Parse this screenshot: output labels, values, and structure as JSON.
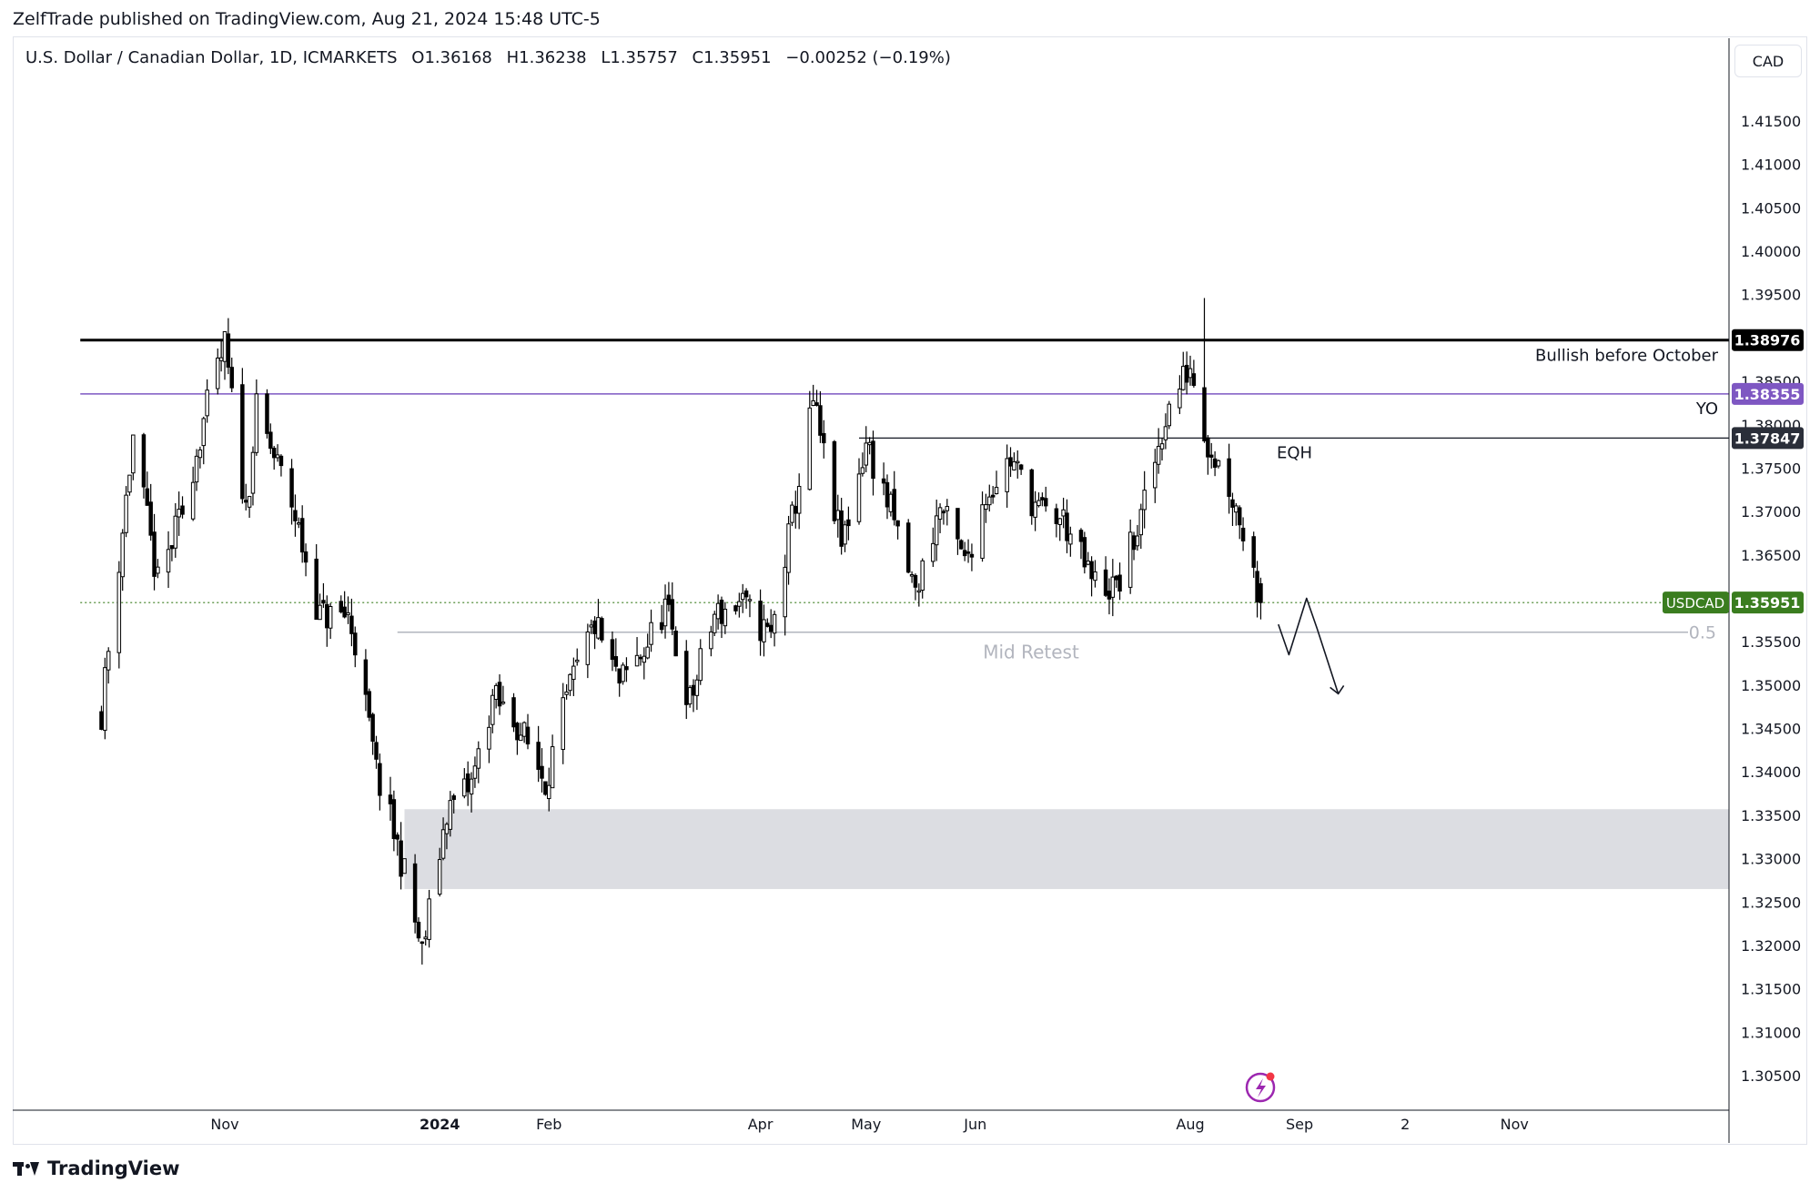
{
  "header": {
    "publisher": "ZelfTrade published on TradingView.com, Aug 21, 2024 15:48 UTC-5"
  },
  "legend": {
    "symbol": "U.S. Dollar / Canadian Dollar, 1D, ICMARKETS",
    "open": "O1.36168",
    "high": "H1.36238",
    "low": "L1.35757",
    "close": "C1.35951",
    "change": "−0.00252 (−0.19%)"
  },
  "currency_button": "CAD",
  "footer": {
    "brand": "TradingView"
  },
  "colors": {
    "up": "#ffffff",
    "down": "#000000",
    "wick": "#000000",
    "resistance": "#000000",
    "yearly_open": "#7e57c2",
    "last_price": "#3a7d1f",
    "zone": "#dcdde2",
    "mid": "#b2b5be"
  },
  "chart_data": {
    "type": "candlestick",
    "symbol": "USDCAD",
    "timeframe": "1D",
    "y_axis": {
      "min": 1.3015,
      "max": 1.418,
      "ticks": [
        "1.41500",
        "1.41000",
        "1.40500",
        "1.40000",
        "1.39500",
        "1.39000",
        "1.38500",
        "1.38000",
        "1.37500",
        "1.37000",
        "1.36500",
        "1.36000",
        "1.35500",
        "1.35000",
        "1.34500",
        "1.34000",
        "1.33500",
        "1.33000",
        "1.32500",
        "1.32000",
        "1.31500",
        "1.31000",
        "1.30500"
      ]
    },
    "x_axis": {
      "labels": [
        {
          "text": "Nov",
          "date": "2023-11-01",
          "bold": false
        },
        {
          "text": "2024",
          "date": "2024-01-01",
          "bold": true
        },
        {
          "text": "Feb",
          "date": "2024-02-01",
          "bold": false
        },
        {
          "text": "Apr",
          "date": "2024-04-01",
          "bold": false
        },
        {
          "text": "May",
          "date": "2024-05-01",
          "bold": false
        },
        {
          "text": "Jun",
          "date": "2024-06-01",
          "bold": false
        },
        {
          "text": "Aug",
          "date": "2024-08-01",
          "bold": false
        },
        {
          "text": "Sep",
          "date": "2024-09-01",
          "bold": false
        },
        {
          "text": "2",
          "date": "2024-10-01",
          "bold": false
        },
        {
          "text": "Nov",
          "date": "2024-11-01",
          "bold": false
        }
      ]
    },
    "anchors": [
      {
        "date": "2023-09-27",
        "price": 1.347
      },
      {
        "date": "2023-10-06",
        "price": 1.3785
      },
      {
        "date": "2023-10-13",
        "price": 1.3615
      },
      {
        "date": "2023-10-20",
        "price": 1.37
      },
      {
        "date": "2023-10-26",
        "price": 1.3805
      },
      {
        "date": "2023-11-01",
        "price": 1.389
      },
      {
        "date": "2023-11-07",
        "price": 1.37
      },
      {
        "date": "2023-11-10",
        "price": 1.3815
      },
      {
        "date": "2023-11-20",
        "price": 1.371
      },
      {
        "date": "2023-11-28",
        "price": 1.358
      },
      {
        "date": "2023-12-06",
        "price": 1.358
      },
      {
        "date": "2023-12-08",
        "price": 1.355
      },
      {
        "date": "2023-12-14",
        "price": 1.34
      },
      {
        "date": "2023-12-21",
        "price": 1.33
      },
      {
        "date": "2023-12-27",
        "price": 1.319
      },
      {
        "date": "2024-01-03",
        "price": 1.3355
      },
      {
        "date": "2024-01-10",
        "price": 1.3385
      },
      {
        "date": "2024-01-16",
        "price": 1.3485
      },
      {
        "date": "2024-01-23",
        "price": 1.3455
      },
      {
        "date": "2024-01-31",
        "price": 1.339
      },
      {
        "date": "2024-02-07",
        "price": 1.3495
      },
      {
        "date": "2024-02-14",
        "price": 1.357
      },
      {
        "date": "2024-02-21",
        "price": 1.35
      },
      {
        "date": "2024-02-28",
        "price": 1.354
      },
      {
        "date": "2024-03-05",
        "price": 1.359
      },
      {
        "date": "2024-03-12",
        "price": 1.348
      },
      {
        "date": "2024-03-19",
        "price": 1.358
      },
      {
        "date": "2024-03-26",
        "price": 1.3595
      },
      {
        "date": "2024-04-04",
        "price": 1.3555
      },
      {
        "date": "2024-04-16",
        "price": 1.3825
      },
      {
        "date": "2024-04-24",
        "price": 1.366
      },
      {
        "date": "2024-05-01",
        "price": 1.378
      },
      {
        "date": "2024-05-08",
        "price": 1.37
      },
      {
        "date": "2024-05-15",
        "price": 1.3605
      },
      {
        "date": "2024-05-22",
        "price": 1.3705
      },
      {
        "date": "2024-05-29",
        "price": 1.364
      },
      {
        "date": "2024-06-04",
        "price": 1.372
      },
      {
        "date": "2024-06-11",
        "price": 1.376
      },
      {
        "date": "2024-06-19",
        "price": 1.37
      },
      {
        "date": "2024-06-26",
        "price": 1.369
      },
      {
        "date": "2024-07-04",
        "price": 1.362
      },
      {
        "date": "2024-07-11",
        "price": 1.361
      },
      {
        "date": "2024-07-18",
        "price": 1.369
      },
      {
        "date": "2024-07-25",
        "price": 1.381
      },
      {
        "date": "2024-08-01",
        "price": 1.387
      },
      {
        "date": "2024-08-06",
        "price": 1.378
      },
      {
        "date": "2024-08-12",
        "price": 1.373
      },
      {
        "date": "2024-08-16",
        "price": 1.368
      },
      {
        "date": "2024-08-21",
        "price": 1.3595
      }
    ],
    "extremes": [
      {
        "date": "2023-11-01",
        "high": 1.39
      },
      {
        "date": "2023-12-27",
        "low": 1.3178
      },
      {
        "date": "2024-04-16",
        "high": 1.3846
      },
      {
        "date": "2024-08-05",
        "high": 1.3946
      }
    ],
    "last_candle": {
      "date": "2024-08-21",
      "open": 1.36168,
      "high": 1.36238,
      "low": 1.35757,
      "close": 1.35951
    },
    "levels": [
      {
        "name": "resistance",
        "price": 1.38976,
        "label": "1.38976",
        "text": "Bullish before October",
        "from_date": "2023-09-21",
        "color": "#000000",
        "width": 3
      },
      {
        "name": "yearly-open",
        "price": 1.38355,
        "label": "1.38355",
        "text": "YO",
        "from_date": "2023-09-21",
        "color": "#7e57c2",
        "width": 1.5
      },
      {
        "name": "eqh",
        "price": 1.37847,
        "label": "1.37847",
        "text": "EQH",
        "from_date": "2024-04-29",
        "color": "#131722",
        "width": 1.2
      },
      {
        "name": "last-price",
        "price": 1.35951,
        "label": "1.35951",
        "text": "USDCAD",
        "from_date": "2023-09-21",
        "color": "#3a7d1f",
        "dotted": true
      },
      {
        "name": "mid-retest",
        "price": 1.3561,
        "label": "0.5",
        "text": "Mid Retest",
        "from_date": "2023-12-20",
        "color": "#b2b5be",
        "width": 1.5
      }
    ],
    "zone": {
      "name": "demand-zone",
      "top": 1.3357,
      "bottom": 1.3265,
      "from_date": "2023-12-22"
    },
    "projection": [
      {
        "date": "2024-08-26",
        "price": 1.357
      },
      {
        "date": "2024-08-29",
        "price": 1.3535
      },
      {
        "date": "2024-09-03",
        "price": 1.36
      },
      {
        "date": "2024-09-06",
        "price": 1.3565
      },
      {
        "date": "2024-09-12",
        "price": 1.349
      }
    ]
  }
}
